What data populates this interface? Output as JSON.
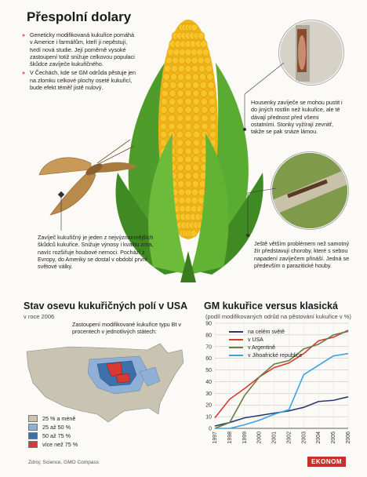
{
  "title": "Přespolní dolary",
  "bullets": [
    "Geneticky modifikovaná kukuřice pomáhá v Americe i farmářům, kteří ji nepěstují, tvrdí nová studie. Její poměrně vysoké zastoupení totiž snižuje celkovou populaci škůdce zavíječe kukuřičného.",
    "V Čechách, kde se GM odrůda pěstuje jen na zlomku celkové plochy oseté kukuřicí, bude efekt téměř jistě nulový."
  ],
  "callouts": {
    "larva": "Housenky zavíječe se mohou pustit i do jiných rostlin než kukuřice, ale té dávají přednost před všemi ostatními. Stonky vyžírají zevnitř, takže se pak snáze lámou.",
    "rot": "Ještě větším problémem než samotný žír představují choroby, které s sebou napadení zavíječem přináší. Jedná se především o parazitické houby.",
    "moth": "Zavíječ kukuřičný je jeden z nejvýznamnějších škůdců kukuřice. Snižuje výnosy i kvalitu zrna, navíc rozšiřuje houbové nemoci. Pochází z Evropy, do Ameriky se dostal v období první světové války."
  },
  "map": {
    "title": "Stav osevu kukuřičných polí v USA",
    "subtitle": "v roce 2006",
    "caption": "Zastoupení modifikované kukuřice typu Bt v procentech v jednotlivých státech:",
    "legend": [
      {
        "label": "25 % a méně",
        "color": "#c9c3b2"
      },
      {
        "label": "25 až 50 %",
        "color": "#8fb0d6"
      },
      {
        "label": "50 až 75 %",
        "color": "#3d6fa8"
      },
      {
        "label": "více než 75 %",
        "color": "#d83a31"
      }
    ]
  },
  "chart_title": "GM kukuřice versus klasická",
  "chart_subtitle": "(podíl modifikovaných odrůd na pěstování kukuřice v %)",
  "chart_data": {
    "type": "line",
    "x": [
      "1997",
      "1998",
      "1999",
      "2000",
      "2001",
      "2002",
      "2003",
      "2004",
      "2005",
      "2006"
    ],
    "ylim": [
      0,
      90
    ],
    "yticks": [
      0,
      10,
      20,
      30,
      40,
      50,
      60,
      70,
      80,
      90
    ],
    "grid": true,
    "legend_position": "top-left",
    "series": [
      {
        "name": "na celém světě",
        "color": "#2b3a6b",
        "values": [
          2,
          5,
          9,
          11,
          13,
          15,
          18,
          23,
          24,
          27
        ]
      },
      {
        "name": "v USA",
        "color": "#d83a31",
        "values": [
          9,
          25,
          34,
          44,
          52,
          56,
          64,
          75,
          78,
          84
        ]
      },
      {
        "name": "v Argentině",
        "color": "#6b7d46",
        "values": [
          0,
          5,
          28,
          44,
          55,
          58,
          68,
          72,
          80,
          83
        ]
      },
      {
        "name": "v Jihoafrické republice",
        "color": "#3ba3de",
        "values": [
          0,
          0,
          3,
          7,
          12,
          16,
          46,
          54,
          62,
          64
        ]
      }
    ]
  },
  "footer": {
    "source": "Zdroj: Science, GMO Compass",
    "brand": "EKONOM"
  }
}
